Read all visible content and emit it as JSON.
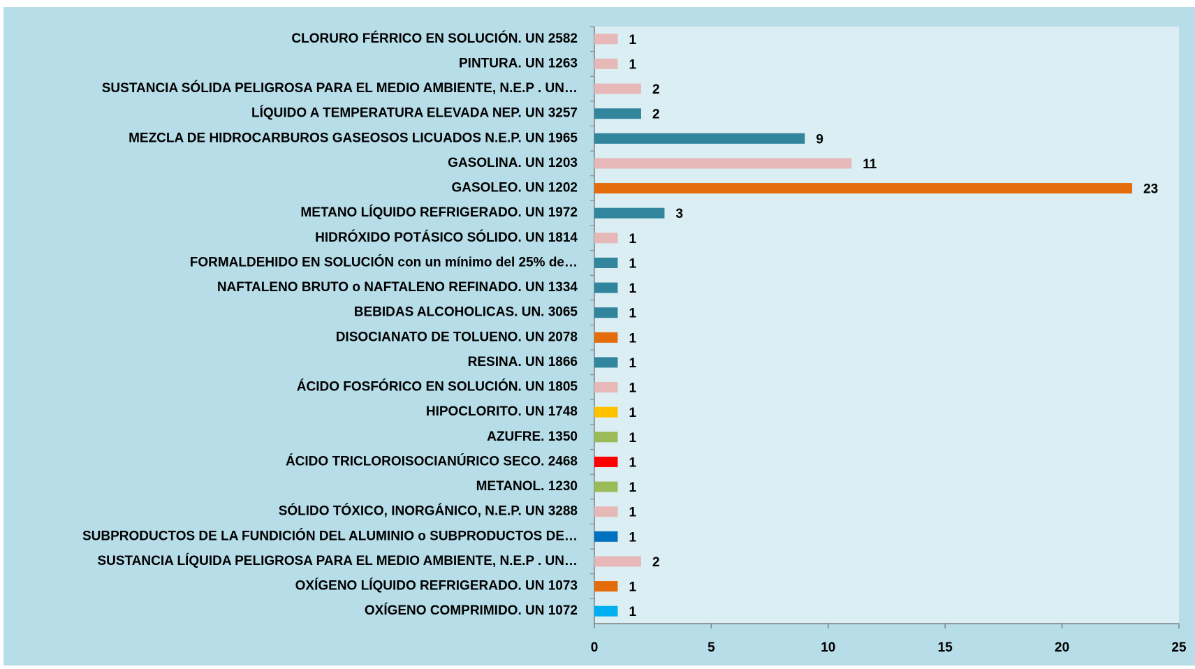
{
  "chart_data": {
    "type": "bar",
    "orientation": "horizontal",
    "categories": [
      "CLORURO FÉRRICO EN SOLUCIÓN. UN 2582",
      "PINTURA. UN 1263",
      "SUSTANCIA SÓLIDA PELIGROSA PARA EL MEDIO AMBIENTE, N.E.P . UN…",
      "LÍQUIDO A TEMPERATURA ELEVADA NEP. UN  3257",
      "MEZCLA DE HIDROCARBUROS GASEOSOS LICUADOS N.E.P. UN 1965",
      "GASOLINA. UN 1203",
      "GASOLEO. UN 1202",
      "METANO LÍQUIDO REFRIGERADO. UN 1972",
      "HIDRÓXIDO POTÁSICO SÓLIDO. UN 1814",
      "FORMALDEHIDO EN SOLUCIÓN con un mínimo del 25% de…",
      "NAFTALENO BRUTO o NAFTALENO REFINADO. UN 1334",
      "BEBIDAS ALCOHOLICAS. UN. 3065",
      "DISOCIANATO DE TOLUENO. UN 2078",
      "RESINA. UN 1866",
      "ÁCIDO FOSFÓRICO EN SOLUCIÓN. UN 1805",
      "HIPOCLORITO. UN 1748",
      "AZUFRE. 1350",
      "ÁCIDO TRICLOROISOCIANÚRICO SECO. 2468",
      "METANOL. 1230",
      "SÓLIDO TÓXICO, INORGÁNICO, N.E.P. UN 3288",
      "SUBPRODUCTOS DE LA FUNDICIÓN DEL ALUMINIO o SUBPRODUCTOS DE…",
      "SUSTANCIA LÍQUIDA PELIGROSA PARA EL MEDIO AMBIENTE, N.E.P . UN…",
      "OXÍGENO LÍQUIDO REFRIGERADO. UN 1073",
      "OXÍGENO COMPRIMIDO. UN 1072"
    ],
    "values": [
      1,
      1,
      2,
      2,
      9,
      11,
      23,
      3,
      1,
      1,
      1,
      1,
      1,
      1,
      1,
      1,
      1,
      1,
      1,
      1,
      1,
      2,
      1,
      1
    ],
    "colors": [
      "#e6b9b8",
      "#e6b9b8",
      "#e6b9b8",
      "#31859c",
      "#31859c",
      "#e6b9b8",
      "#e46c0a",
      "#31859c",
      "#e6b9b8",
      "#31859c",
      "#31859c",
      "#31859c",
      "#e46c0a",
      "#31859c",
      "#e6b9b8",
      "#ffc000",
      "#9bbb59",
      "#ff0000",
      "#9bbb59",
      "#e6b9b8",
      "#0070c0",
      "#e6b9b8",
      "#e46c0a",
      "#00b0f0"
    ],
    "xlim": [
      0,
      25
    ],
    "xticks": [
      0,
      5,
      10,
      15,
      20,
      25
    ]
  }
}
